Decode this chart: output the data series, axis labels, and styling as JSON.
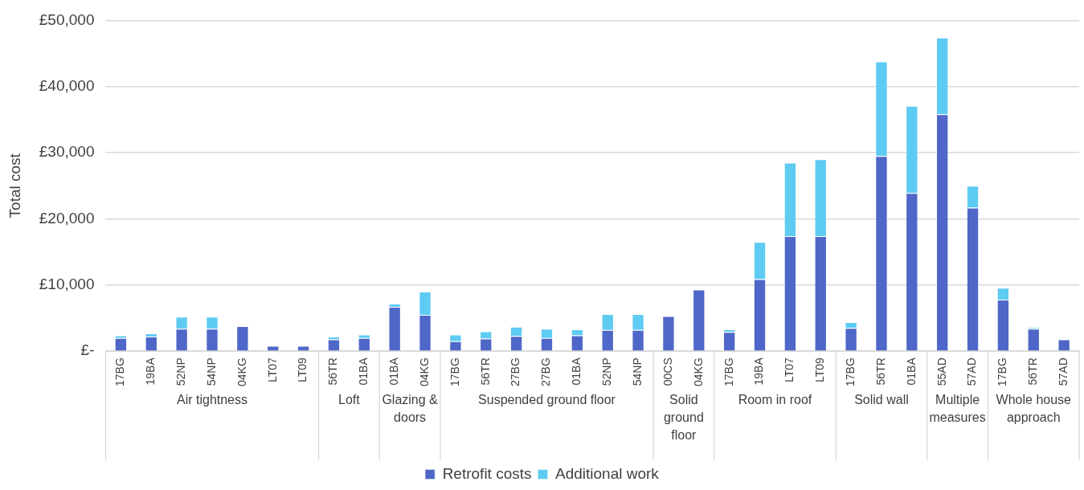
{
  "chart_data": {
    "type": "bar",
    "stacked": true,
    "ylabel": "Total cost",
    "categories": [
      "17BG",
      "19BA",
      "52NP",
      "54NP",
      "04KG",
      "LT07",
      "LT09",
      "56TR",
      "01BA",
      "01BA",
      "04KG",
      "17BG",
      "56TR",
      "27BG",
      "27BG",
      "01BA",
      "52NP",
      "54NP",
      "00CS",
      "04KG",
      "17BG",
      "19BA",
      "LT07",
      "LT09",
      "17BG",
      "56TR",
      "01BA",
      "55AD",
      "57AD",
      "17BG",
      "56TR",
      "57AD"
    ],
    "annotations": [
      "Air tightness",
      "Loft",
      "Glazing & doors",
      "Suspended ground floor",
      "Solid ground floor",
      "Room in roof",
      "Solid wall",
      "Multiple measures",
      "Whole house approach"
    ],
    "series": [
      {
        "name": "Retrofit costs",
        "color": "#4f67c8",
        "values": [
          2000,
          2200,
          3400,
          3400,
          3800,
          800,
          800,
          1800,
          2000,
          6700,
          5500,
          1500,
          1900,
          2300,
          2000,
          2400,
          3200,
          3200,
          5300,
          9300,
          2900,
          10900,
          17400,
          17400,
          3500,
          29500,
          23900,
          35800,
          21700,
          7800,
          3400,
          1800
        ]
      },
      {
        "name": "Additional work",
        "color": "#5ecbf2",
        "values": [
          400,
          500,
          1800,
          1800,
          null,
          null,
          null,
          400,
          500,
          500,
          3500,
          1000,
          1100,
          1400,
          1400,
          900,
          2400,
          2400,
          null,
          null,
          400,
          5600,
          11100,
          11600,
          900,
          14300,
          13200,
          11600,
          3300,
          1800,
          200,
          null
        ]
      }
    ],
    "ylim": [
      0,
      50000
    ],
    "yticks": [
      {
        "value": 0,
        "label": "£-"
      },
      {
        "value": 10000,
        "label": "£10,000"
      },
      {
        "value": 20000,
        "label": "£20,000"
      },
      {
        "value": 30000,
        "label": "£30,000"
      },
      {
        "value": 40000,
        "label": "£40,000"
      },
      {
        "value": 50000,
        "label": "£50,000"
      }
    ],
    "grid": "y",
    "legend": "bottom"
  }
}
